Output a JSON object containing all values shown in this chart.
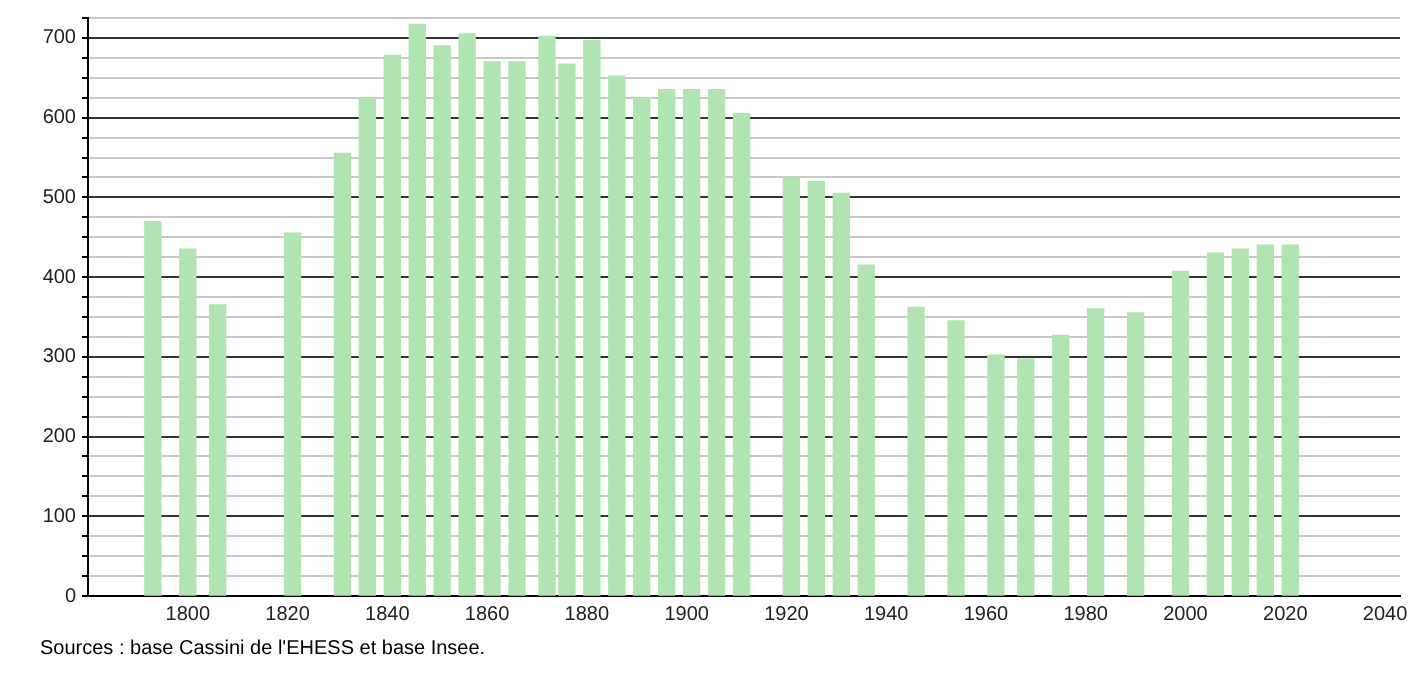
{
  "chart_data": {
    "type": "bar",
    "x": [
      1793,
      1800,
      1806,
      1821,
      1831,
      1836,
      1841,
      1846,
      1851,
      1856,
      1861,
      1866,
      1872,
      1876,
      1881,
      1886,
      1891,
      1896,
      1901,
      1906,
      1911,
      1921,
      1926,
      1931,
      1936,
      1946,
      1954,
      1962,
      1968,
      1975,
      1982,
      1990,
      1999,
      2006,
      2011,
      2016,
      2021
    ],
    "values": [
      470,
      435,
      365,
      455,
      555,
      625,
      678,
      717,
      690,
      705,
      670,
      670,
      702,
      667,
      697,
      652,
      624,
      635,
      635,
      635,
      605,
      525,
      520,
      505,
      415,
      362,
      345,
      302,
      297,
      327,
      360,
      355,
      407,
      430,
      435,
      440,
      440
    ],
    "color": "#b0e4b0",
    "xlim": [
      1780,
      2043
    ],
    "xticks": [
      1800,
      1820,
      1840,
      1860,
      1880,
      1900,
      1920,
      1940,
      1960,
      1980,
      2000,
      2020,
      2040
    ],
    "ylim": [
      0,
      725
    ],
    "yticks": [
      0,
      {
        "value": 25,
        "label": null
      },
      {
        "value": 50,
        "label": null
      },
      {
        "value": 75,
        "label": null
      },
      100,
      {
        "value": 125,
        "label": null
      },
      {
        "value": 150,
        "label": null
      },
      {
        "value": 175,
        "label": null
      },
      200,
      {
        "value": 225,
        "label": null
      },
      {
        "value": 250,
        "label": null
      },
      {
        "value": 275,
        "label": null
      },
      300,
      {
        "value": 325,
        "label": null
      },
      {
        "value": 350,
        "label": null
      },
      {
        "value": 375,
        "label": null
      },
      400,
      {
        "value": 425,
        "label": null
      },
      {
        "value": 450,
        "label": null
      },
      {
        "value": 475,
        "label": null
      },
      500,
      {
        "value": 525,
        "label": null
      },
      {
        "value": 550,
        "label": null
      },
      {
        "value": 575,
        "label": null
      },
      600,
      {
        "value": 625,
        "label": null
      },
      {
        "value": 650,
        "label": null
      },
      {
        "value": 675,
        "label": null
      },
      700,
      {
        "value": 725,
        "label": null
      }
    ],
    "grid": "y",
    "legend": false,
    "annotations": [
      "Sources : base Cassini de l'EHESS et base Insee."
    ]
  }
}
